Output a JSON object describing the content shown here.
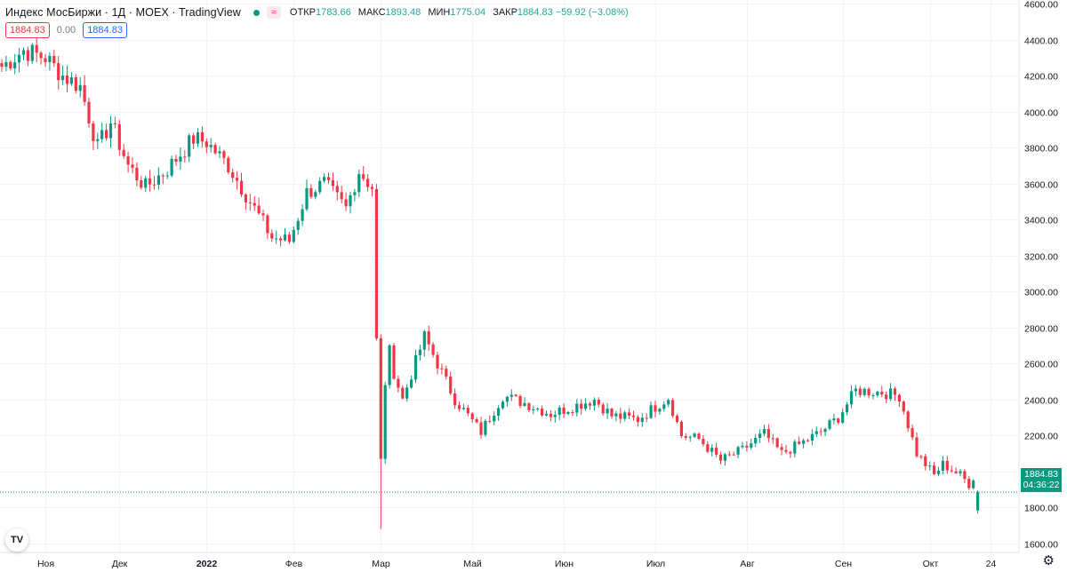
{
  "header": {
    "symbol_title": "Индекс МосБиржи · 1Д · MOEX · TradingView",
    "ohlc": [
      {
        "key": "ОТКР",
        "value": "1783.66"
      },
      {
        "key": "МАКС",
        "value": "1893.48"
      },
      {
        "key": "МИН",
        "value": "1775.04"
      },
      {
        "key": "ЗАКР",
        "value": "1884.83 −59.92 (−3.08%)"
      }
    ],
    "sell_price": "1884.83",
    "spread": "0.00",
    "buy_price": "1884.83"
  },
  "price_tag": {
    "price": "1884.83",
    "countdown": "04:36:22"
  },
  "colors": {
    "up": "#089981",
    "down": "#f23645",
    "grid": "#f0f3fa",
    "axis_text": "#131722"
  },
  "icons": {
    "logo": "tradingview-logo-icon",
    "settings": "gear-icon"
  },
  "chart_data": {
    "type": "candlestick",
    "title": "Индекс МосБиржи",
    "ylim": [
      1550,
      4600
    ],
    "y_ticks": [
      1600,
      1800,
      2000,
      2200,
      2400,
      2600,
      2800,
      3000,
      3200,
      3400,
      3600,
      3800,
      4000,
      4200,
      4400,
      4600
    ],
    "y_tick_labels": [
      "1600.00",
      "1800.00",
      "2000.00",
      "2200.00",
      "2400.00",
      "2600.00",
      "2800.00",
      "3000.00",
      "3200.00",
      "3400.00",
      "3600.00",
      "3800.00",
      "4000.00",
      "4200.00",
      "4400.00",
      "4600.00"
    ],
    "x_labels": [
      {
        "label": "Ноя",
        "bold": false
      },
      {
        "label": "Дек",
        "bold": false
      },
      {
        "label": "2022",
        "bold": true
      },
      {
        "label": "Фев",
        "bold": false
      },
      {
        "label": "Мар",
        "bold": false
      },
      {
        "label": "Май",
        "bold": false
      },
      {
        "label": "Июн",
        "bold": false
      },
      {
        "label": "Июл",
        "bold": false
      },
      {
        "label": "Авг",
        "bold": false
      },
      {
        "label": "Сен",
        "bold": false
      },
      {
        "label": "Окт",
        "bold": false
      },
      {
        "label": "24",
        "bold": false
      }
    ],
    "x_label_candle_index": [
      10,
      27,
      47,
      67,
      87,
      108,
      129,
      150,
      171,
      193,
      213,
      227
    ],
    "last_price": 1884.83,
    "anchors": [
      [
        4250,
        4340,
        4300,
        4200,
        4140,
        3800,
        3940,
        3700,
        3580,
        3680,
        3850,
        3830,
        3700,
        3500,
        3300,
        3280,
        3550,
        3600,
        3460,
        3670,
        3580,
        2900,
        2550,
        2400,
        2750,
        2600,
        2400,
        2220,
        2420,
        2380,
        2320,
        2360,
        2400,
        2310,
        2290,
        2360,
        2410,
        2200,
        2180,
        2060,
        2120,
        2210,
        2100,
        2150,
        2220,
        2300,
        2450,
        2440,
        2420,
        2100,
        1980,
        2040,
        1980,
        1880
      ],
      [
        0,
        5,
        10,
        14,
        18,
        22,
        25,
        29,
        33,
        38,
        44,
        47,
        52,
        57,
        62,
        66,
        70,
        74,
        79,
        82,
        85,
        87,
        90,
        92,
        97,
        100,
        104,
        110,
        115,
        120,
        126,
        131,
        136,
        140,
        146,
        150,
        153,
        156,
        160,
        165,
        170,
        175,
        179,
        183,
        188,
        192,
        196,
        202,
        206,
        210,
        214,
        216,
        220,
        224
      ]
    ],
    "candle_count": 225
  }
}
